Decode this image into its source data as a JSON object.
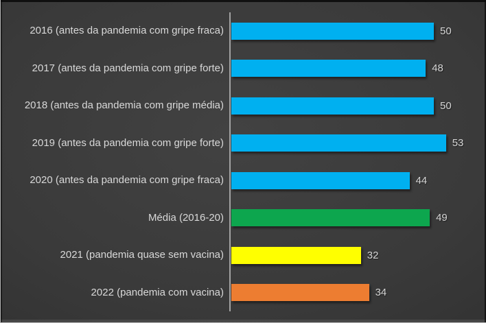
{
  "frame": {
    "background_center": "#424242",
    "background_edge": "#242424",
    "border_dark": "#0a0a0a",
    "axis_color": "#a3a3a3",
    "category_label_color": "#d9d9d9",
    "value_label_color": "#d6d6d6"
  },
  "chart_data": {
    "type": "bar",
    "orientation": "horizontal",
    "title": "",
    "xlabel": "",
    "ylabel": "",
    "categories": [
      "2016 (antes da pandemia com gripe fraca)",
      "2017 (antes da pandemia com gripe forte)",
      "2018 (antes da pandemia com gripe média)",
      "2019 (antes da pandemia com gripe forte)",
      "2020 (antes da pandemia com gripe fraca)",
      "Média (2016-20)",
      "2021 (pandemia quase sem vacina)",
      "2022 (pandemia com vacina)"
    ],
    "values": [
      50,
      48,
      50,
      53,
      44,
      49,
      32,
      34
    ],
    "bar_colors": [
      "#00B0F0",
      "#00B0F0",
      "#00B0F0",
      "#00B0F0",
      "#00B0F0",
      "#0DA64E",
      "#FFFF00",
      "#ED7D31"
    ],
    "xlim": [
      0,
      60
    ],
    "grid": false,
    "legend": null,
    "data_labels": true
  }
}
